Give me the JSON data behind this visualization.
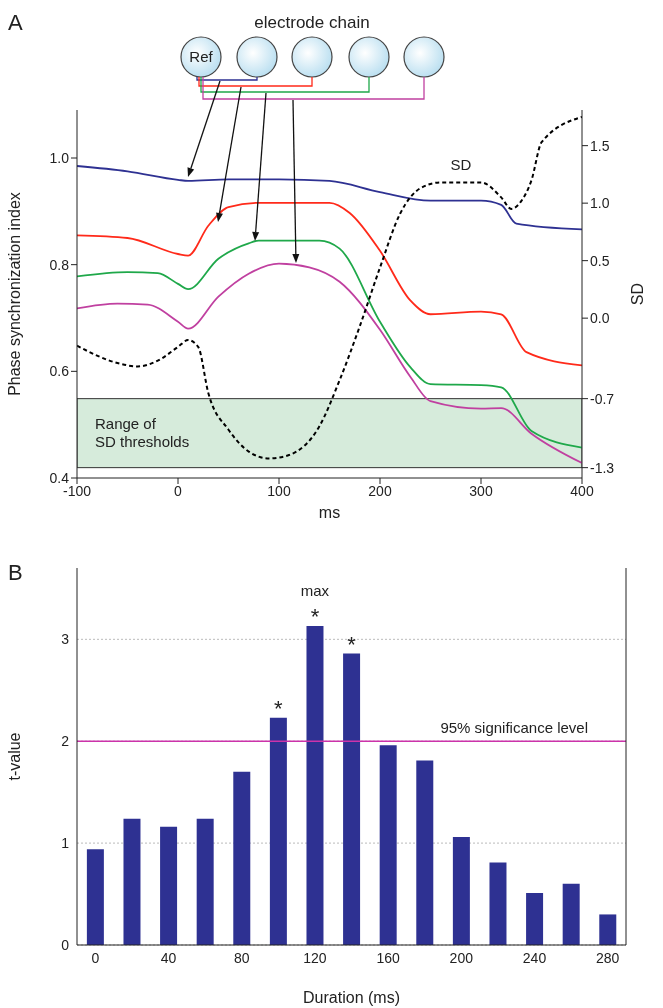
{
  "chart_data": [
    {
      "type": "line",
      "xlabel": "ms",
      "ylabel": "Phase synchronization index",
      "y2label": "SD",
      "xlim": [
        -100,
        400
      ],
      "xticks": [
        -100,
        0,
        100,
        200,
        300,
        400
      ],
      "ylim": [
        0.4,
        1.09
      ],
      "yticks": [
        0.4,
        0.6,
        0.8,
        {
          "value": 1,
          "label": "1.0"
        }
      ],
      "y2lim": [
        -1.39,
        1.81
      ],
      "y2ticks": [
        {
          "value": 1.5,
          "label": "1.5"
        },
        {
          "value": 1,
          "label": "1.0"
        },
        {
          "value": 0.5,
          "label": "0.5"
        },
        {
          "value": 0,
          "label": "0.0"
        },
        -0.7,
        -1.3
      ],
      "series": [
        {
          "color": "#2e3192",
          "x": [
            -100,
            -50,
            0,
            10,
            50,
            100,
            150,
            200,
            250,
            300,
            320,
            335,
            400
          ],
          "values": [
            0.985,
            0.975,
            0.959,
            0.957,
            0.96,
            0.96,
            0.957,
            0.936,
            0.92,
            0.92,
            0.912,
            0.877,
            0.866
          ]
        },
        {
          "color": "#ff2a1a",
          "x": [
            -100,
            -50,
            0,
            10,
            30,
            50,
            80,
            150,
            170,
            200,
            230,
            250,
            300,
            320,
            345,
            400
          ],
          "values": [
            0.855,
            0.85,
            0.82,
            0.817,
            0.873,
            0.908,
            0.916,
            0.916,
            0.897,
            0.826,
            0.733,
            0.707,
            0.712,
            0.707,
            0.636,
            0.611
          ]
        },
        {
          "color": "#1fa84a",
          "x": [
            -100,
            -50,
            -20,
            0,
            10,
            40,
            70,
            80,
            140,
            160,
            200,
            230,
            250,
            300,
            320,
            350,
            400
          ],
          "values": [
            0.778,
            0.786,
            0.784,
            0.764,
            0.754,
            0.811,
            0.84,
            0.845,
            0.845,
            0.83,
            0.693,
            0.608,
            0.576,
            0.574,
            0.57,
            0.488,
            0.457
          ]
        },
        {
          "color": "#c040a0",
          "x": [
            -100,
            -60,
            -30,
            0,
            10,
            40,
            70,
            100,
            130,
            160,
            200,
            230,
            250,
            300,
            320,
            350,
            400
          ],
          "values": [
            0.718,
            0.727,
            0.725,
            0.693,
            0.68,
            0.74,
            0.783,
            0.802,
            0.795,
            0.768,
            0.678,
            0.59,
            0.544,
            0.53,
            0.531,
            0.483,
            0.428
          ]
        },
        {
          "name": "SD",
          "type": "line",
          "axis": "y2",
          "line_style": "dashed",
          "color": "#000000",
          "x": [
            -100,
            -60,
            -40,
            -20,
            0,
            10,
            20,
            30,
            50,
            70,
            90,
            110,
            140,
            160,
            180,
            200,
            220,
            240,
            260,
            300,
            320,
            330,
            340,
            350,
            360,
            400
          ],
          "values": [
            -0.24,
            -0.39,
            -0.42,
            -0.37,
            -0.25,
            -0.19,
            -0.25,
            -0.65,
            -0.97,
            -1.16,
            -1.22,
            -1.19,
            -0.94,
            -0.54,
            -0.07,
            0.44,
            0.91,
            1.13,
            1.18,
            1.18,
            1.05,
            0.95,
            1.02,
            1.2,
            1.53,
            1.75
          ]
        }
      ],
      "bands": [
        {
          "axis": "y2",
          "from": -1.3,
          "to": -0.7,
          "label": "Range of SD thresholds",
          "color": "#d6ebdb"
        }
      ],
      "annotations": [
        "A",
        "electrode chain",
        "Ref"
      ]
    },
    {
      "type": "bar",
      "xlabel": "Duration (ms)",
      "ylabel": "t-value",
      "categories": [
        "0",
        null,
        "40",
        null,
        "80",
        null,
        "120",
        null,
        "160",
        null,
        "200",
        null,
        "240",
        null,
        "280"
      ],
      "values": [
        0.94,
        1.24,
        1.16,
        1.24,
        1.7,
        2.23,
        3.13,
        2.86,
        1.96,
        1.81,
        1.06,
        0.81,
        0.51,
        0.6,
        0.3
      ],
      "value_labels": [
        null,
        null,
        null,
        null,
        null,
        "*",
        "*",
        "*",
        null,
        null,
        null,
        null,
        null,
        null,
        null
      ],
      "color": "#2e3192",
      "ylim": [
        0,
        3.7
      ],
      "yticks": [
        0,
        1,
        2,
        3
      ],
      "grid": "y",
      "ref_lines": [
        {
          "axis": "y",
          "value": 2,
          "label": "95% significance level",
          "color": "#cc33aa"
        }
      ],
      "annotations": [
        "B",
        {
          "text": "max",
          "x": "120",
          "y": 3.13
        }
      ]
    }
  ]
}
